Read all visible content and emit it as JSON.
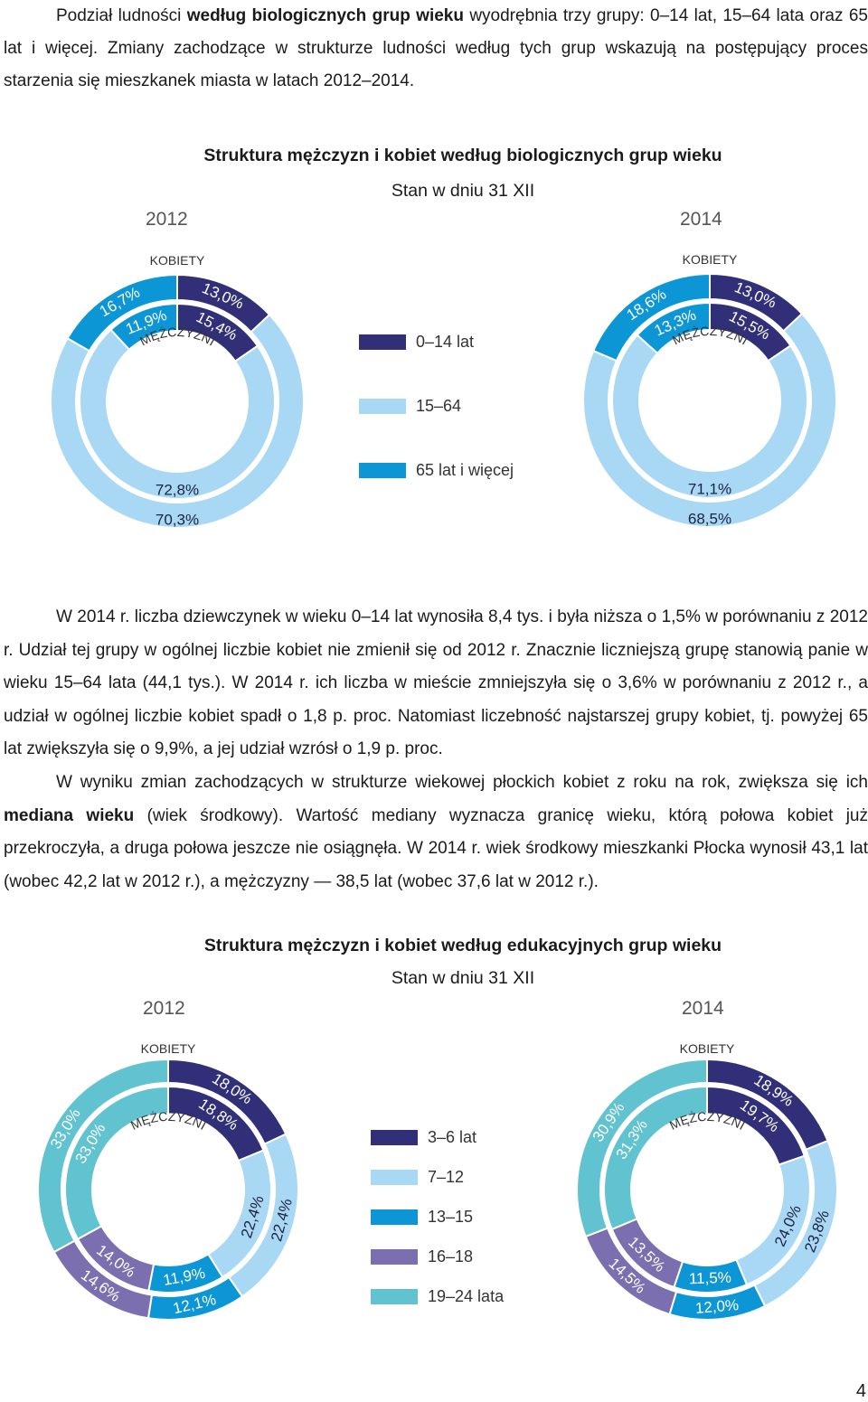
{
  "intro": {
    "t1": "Podział ludności ",
    "b1": "według biologicznych grup wieku",
    "t2": " wyodrębnia trzy grupy: 0–14 lat, 15–64 lata oraz 65 lat i więcej. Zmiany zachodzące w strukturze ludności według tych grup wskazują na postępujący proces starzenia się mieszkanek miasta w latach 2012–2014."
  },
  "figure1": {
    "title": "Struktura mężczyzn i kobiet według biologicznych grup wieku",
    "subtitle": "Stan w dniu 31 XII",
    "women_label": "KOBIETY",
    "men_label": "MĘŻCZYŹNI",
    "legend": [
      {
        "label": "0–14 lat",
        "color": "#302f78"
      },
      {
        "label": "15–64",
        "color": "#a8d8f4"
      },
      {
        "label": "65 lat i więcej",
        "color": "#0d96d6"
      }
    ]
  },
  "chart_data": [
    {
      "type": "donut",
      "title": "2012",
      "categories": [
        "0–14 lat",
        "15–64",
        "65 lat i więcej"
      ],
      "series": [
        {
          "name": "KOBIETY",
          "values": [
            13.0,
            70.3,
            16.7
          ],
          "labels": [
            "13,0%",
            "70,3%",
            "16,7%"
          ]
        },
        {
          "name": "MĘŻCZYŹNI",
          "values": [
            15.4,
            72.8,
            11.9
          ],
          "labels": [
            "15,4%",
            "72,8%",
            "11,9%"
          ]
        }
      ]
    },
    {
      "type": "donut",
      "title": "2014",
      "categories": [
        "0–14 lat",
        "15–64",
        "65 lat i więcej"
      ],
      "series": [
        {
          "name": "KOBIETY",
          "values": [
            13.0,
            68.5,
            18.6
          ],
          "labels": [
            "13,0%",
            "68,5%",
            "18,6%"
          ]
        },
        {
          "name": "MĘŻCZYŹNI",
          "values": [
            15.5,
            71.1,
            13.3
          ],
          "labels": [
            "15,5%",
            "71,1%",
            "13,3%"
          ]
        }
      ]
    },
    {
      "type": "donut",
      "title": "2012",
      "categories": [
        "3–6 lat",
        "7–12",
        "13–15",
        "16–18",
        "19–24 lata"
      ],
      "series": [
        {
          "name": "KOBIETY",
          "values": [
            18.0,
            22.4,
            12.1,
            14.6,
            33.0
          ],
          "labels": [
            "18,0%",
            "22,4%",
            "12,1%",
            "14,6%",
            "33,0%"
          ]
        },
        {
          "name": "MĘŻCZYŹNI",
          "values": [
            18.8,
            22.4,
            11.9,
            14.0,
            33.0
          ],
          "labels": [
            "18,8%",
            "22,4%",
            "11,9%",
            "14,0%",
            "33,0%"
          ]
        }
      ]
    },
    {
      "type": "donut",
      "title": "2014",
      "categories": [
        "3–6 lat",
        "7–12",
        "13–15",
        "16–18",
        "19–24 lata"
      ],
      "series": [
        {
          "name": "KOBIETY",
          "values": [
            18.9,
            23.8,
            12.0,
            14.5,
            30.9
          ],
          "labels": [
            "18,9%",
            "23,8%",
            "12,0%",
            "14,5%",
            "30,9%"
          ]
        },
        {
          "name": "MĘŻCZYŹNI",
          "values": [
            19.7,
            24.0,
            11.5,
            13.5,
            31.3
          ],
          "labels": [
            "19,7%",
            "24,0%",
            "11,5%",
            "13,5%",
            "31,3%"
          ]
        }
      ]
    }
  ],
  "body": {
    "s1": "W 2014 r. liczba dziewczynek w wieku 0–14 lat wynosiła 8,4 tys. i była niższa o 1,5% w porównaniu z 2012 r. Udział tej grupy w ogólnej liczbie kobiet nie zmienił się od 2012 r. Znacznie liczniejszą grupę stanowią panie w wieku 15–64 lata (44,1 tys.). W 2014 r. ich liczba w mieście zmniejszyła się o 3,6% w porównaniu z 2012 r., a udział w ogólnej liczbie kobiet spadł o 1,8 p. proc. Natomiast liczebność najstarszej grupy kobiet, tj. powyżej 65 lat zwiększyła się o 9,9%, a jej udział wzrósł o 1,9 p. proc.",
    "s2a": "W wyniku zmian zachodzących w strukturze wiekowej płockich kobiet z roku na rok, zwiększa się ich ",
    "s2b": "mediana wieku",
    "s2c": " (wiek środkowy). Wartość mediany wyznacza granicę wieku, którą połowa kobiet już przekroczyła, a druga połowa jeszcze nie osiągnęła. W 2014 r. wiek środkowy mieszkanki Płocka wynosił 43,1 lat (wobec 42,2 lat w 2012 r.), a mężczyzny — 38,5 lat (wobec 37,6 lat w 2012 r.)."
  },
  "figure2": {
    "title": "Struktura mężczyzn i kobiet według edukacyjnych grup wieku",
    "subtitle": "Stan w dniu 31 XII",
    "women_label": "KOBIETY",
    "men_label": "MĘŻCZYŹNI",
    "legend": [
      {
        "label": "3–6 lat",
        "color": "#302f78"
      },
      {
        "label": "7–12",
        "color": "#a8d8f4"
      },
      {
        "label": "13–15",
        "color": "#0d96d6"
      },
      {
        "label": "16–18",
        "color": "#7b6fb0"
      },
      {
        "label": "19–24 lata",
        "color": "#62c3d0"
      }
    ]
  },
  "page_number": "4"
}
